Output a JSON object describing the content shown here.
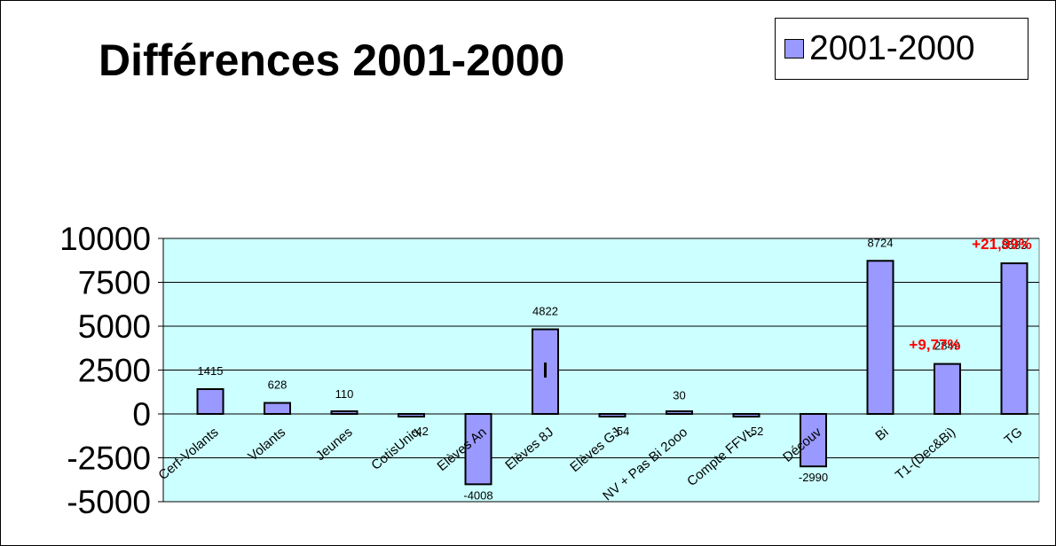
{
  "title": "Différences 2001-2000",
  "legend": {
    "label": "2001-2000",
    "swatch_color": "#9999ff",
    "placement": "top-right"
  },
  "colors": {
    "plot_background": "#ccffff",
    "bar_fill": "#9999ff",
    "bar_stroke": "#000000",
    "annotation": "#ff0000"
  },
  "chart_data": {
    "type": "bar",
    "title": "Différences 2001-2000",
    "xlabel": "",
    "ylabel": "",
    "ylim": [
      -5000,
      10000
    ],
    "yticks": [
      10000,
      7500,
      5000,
      2500,
      0,
      -2500,
      -5000
    ],
    "grid": true,
    "categories": [
      "Cerf-Volants",
      "Volants",
      "Jeunes",
      "CotisUniq",
      "Elèves An",
      "Elèves 8J",
      "Elèves GJ",
      "NV + Pas Bi 2ooo",
      "Compte FFVL",
      "Découv",
      "Bi",
      "T1-(Dec&Bi)",
      "TG"
    ],
    "series": [
      {
        "name": "2001-2000",
        "values": [
          1415,
          628,
          110,
          -42,
          -4008,
          4822,
          -54,
          30,
          -52,
          -2990,
          8724,
          2849,
          8583
        ]
      }
    ],
    "data_labels": [
      "1415",
      "628",
      "110",
      "-42",
      "-4008",
      "4822",
      "-54",
      "30",
      "-52",
      "-2990",
      "8724",
      "2849",
      "8583"
    ],
    "annotations": [
      {
        "category": "T1-(Dec&Bi)",
        "text": "+9,77%"
      },
      {
        "category": "TG",
        "text": "+21,99%"
      }
    ]
  }
}
